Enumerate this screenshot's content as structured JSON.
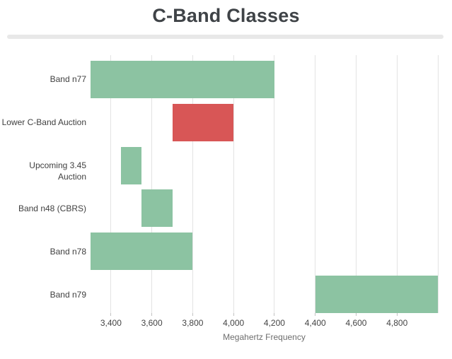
{
  "header": {
    "title": "C-Band Classes"
  },
  "chart_data": {
    "type": "bar",
    "orientation": "horizontal-range",
    "title": "C-Band Classes",
    "xlabel": "Megahertz Frequency",
    "ylabel": "",
    "xlim": [
      3300,
      5000
    ],
    "grid": "vertical",
    "legend": "none",
    "grid_values": [
      3400,
      3600,
      3800,
      4000,
      4200,
      4400,
      4600,
      4800,
      5000
    ],
    "ticks": [
      {
        "value": 3400,
        "label": "3,400"
      },
      {
        "value": 3600,
        "label": "3,600"
      },
      {
        "value": 3800,
        "label": "3,800"
      },
      {
        "value": 4000,
        "label": "4,000"
      },
      {
        "value": 4200,
        "label": "4,200"
      },
      {
        "value": 4400,
        "label": "4,400"
      },
      {
        "value": 4600,
        "label": "4,600"
      },
      {
        "value": 4800,
        "label": "4,800"
      }
    ],
    "categories": [
      "Band n77",
      "Lower C-Band Auction",
      "Upcoming 3.45 Auction",
      "Band n48 (CBRS)",
      "Band n78",
      "Band n79"
    ],
    "bars": [
      {
        "label": "Band n77",
        "start": 3300,
        "end": 4200,
        "color": "#8cc3a2"
      },
      {
        "label": "Lower C-Band Auction",
        "start": 3700,
        "end": 4000,
        "color": "#d85656"
      },
      {
        "label": "Upcoming 3.45 Auction",
        "start": 3450,
        "end": 3550,
        "color": "#8cc3a2"
      },
      {
        "label": "Band n48 (CBRS)",
        "start": 3550,
        "end": 3700,
        "color": "#8cc3a2"
      },
      {
        "label": "Band n78",
        "start": 3300,
        "end": 3800,
        "color": "#8cc3a2"
      },
      {
        "label": "Band n79",
        "start": 4400,
        "end": 5000,
        "color": "#8cc3a2"
      }
    ],
    "colors": {
      "primary": "#8cc3a2",
      "highlight": "#d85656",
      "gridline": "#e3e3e3",
      "tick_label": "#444444",
      "category_label": "#3f3f3f",
      "axis_title": "#6e6e6e",
      "title": "#3f4347",
      "divider": "#e8e8e8",
      "background": "#ffffff"
    }
  }
}
